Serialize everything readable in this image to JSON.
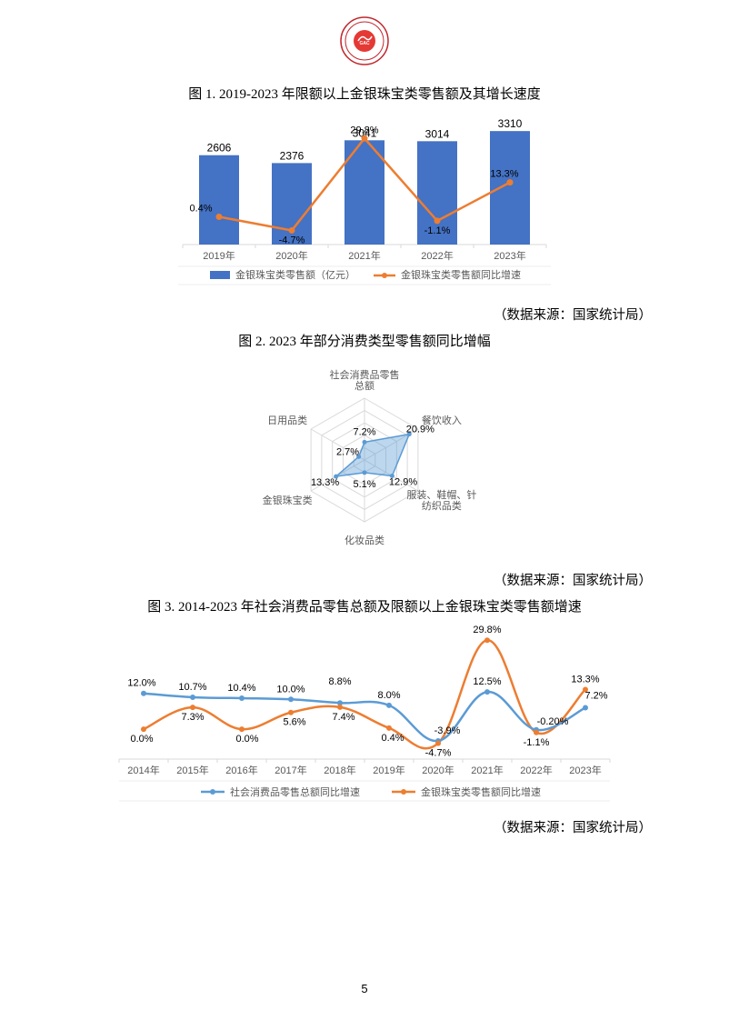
{
  "page_number": "5",
  "logo_colors": {
    "outer": "#c1272d",
    "inner": "#e53935"
  },
  "chart1": {
    "title": "图 1.  2019-2023 年限额以上金银珠宝类零售额及其增长速度",
    "source": "（数据来源：国家统计局）",
    "categories": [
      "2019年",
      "2020年",
      "2021年",
      "2022年",
      "2023年"
    ],
    "bar_values": [
      2606,
      2376,
      3041,
      3014,
      3310
    ],
    "line_values_text": [
      "0.4%",
      "-4.7%",
      "29.8%",
      "-1.1%",
      "13.3%"
    ],
    "line_values": [
      0.4,
      -4.7,
      29.8,
      -1.1,
      13.3
    ],
    "bar_color": "#4472c4",
    "line_color": "#ed7d31",
    "legend_bar": "金银珠宝类零售额（亿元）",
    "legend_line": "金银珠宝类零售额同比增速",
    "axis_color": "#d9d9d9",
    "text_color": "#595959",
    "y_max": 3500,
    "line_y_min": -10,
    "line_y_max": 35
  },
  "chart2": {
    "title": "图 2. 2023 年部分消费类型零售额同比增幅",
    "source": "（数据来源：国家统计局）",
    "axes": [
      "社会消费品零售总额",
      "餐饮收入",
      "服装、鞋帽、针纺织品类",
      "化妆品类",
      "金银珠宝类",
      "日用品类"
    ],
    "values": [
      7.2,
      20.9,
      12.9,
      5.1,
      13.3,
      2.7
    ],
    "values_text": [
      "7.2%",
      "20.9%",
      "12.9%",
      "5.1%",
      "13.3%",
      "2.7%"
    ],
    "max_value": 25,
    "rings": 5,
    "fill_color": "#5b9bd5",
    "fill_opacity": 0.4,
    "stroke_color": "#5b9bd5",
    "grid_color": "#d9d9d9",
    "text_color": "#595959"
  },
  "chart3": {
    "title": "图 3.  2014-2023 年社会消费品零售总额及限额以上金银珠宝类零售额增速",
    "source": "（数据来源：国家统计局）",
    "categories": [
      "2014年",
      "2015年",
      "2016年",
      "2017年",
      "2018年",
      "2019年",
      "2020年",
      "2021年",
      "2022年",
      "2023年"
    ],
    "series1_values": [
      12.0,
      10.7,
      10.4,
      10.0,
      8.8,
      8.0,
      -3.9,
      12.5,
      -0.2,
      7.2
    ],
    "series1_text": [
      "12.0%",
      "10.7%",
      "10.4%",
      "10.0%",
      "8.8%",
      "8.0%",
      "-3.9%",
      "12.5%",
      "-0.20%",
      "7.2%"
    ],
    "series2_values": [
      0.0,
      7.3,
      0.0,
      5.6,
      7.4,
      0.4,
      -4.7,
      29.8,
      -1.1,
      13.3
    ],
    "series2_text": [
      "0.0%",
      "7.3%",
      "0.0%",
      "5.6%",
      "7.4%",
      "0.4%",
      "-4.7%",
      "29.8%",
      "-1.1%",
      "13.3%"
    ],
    "series1_color": "#5b9bd5",
    "series2_color": "#ed7d31",
    "legend1": "社会消费品零售总额同比增速",
    "legend2": "金银珠宝类零售额同比增速",
    "axis_color": "#d9d9d9",
    "text_color": "#595959",
    "y_min": -10,
    "y_max": 32
  }
}
